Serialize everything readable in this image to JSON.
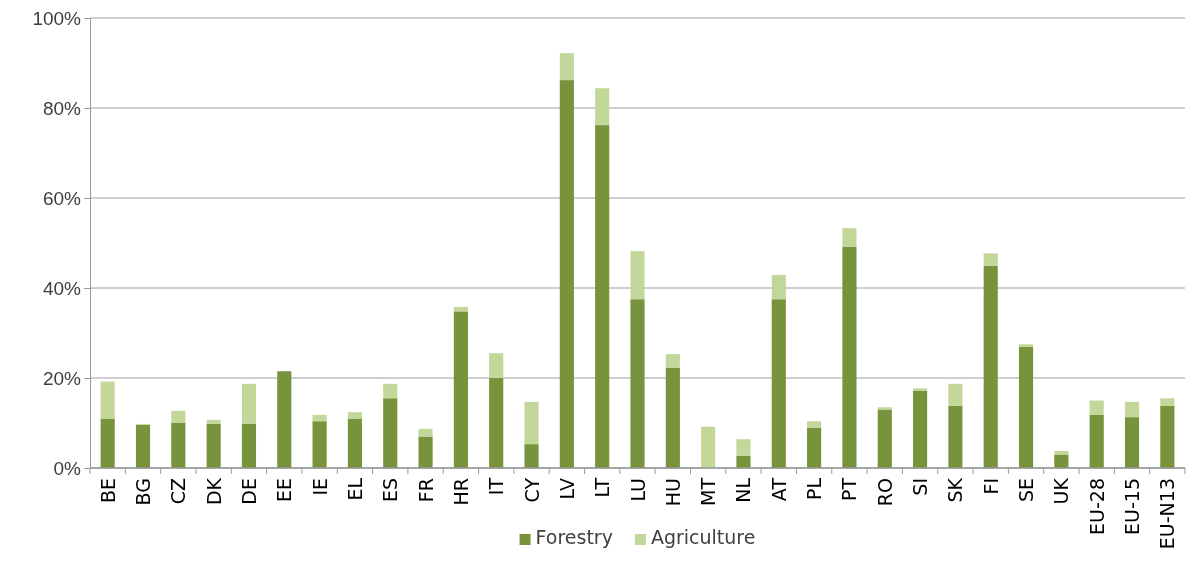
{
  "chart_data": {
    "type": "bar",
    "stacked": true,
    "categories": [
      "BE",
      "BG",
      "CZ",
      "DK",
      "DE",
      "EE",
      "IE",
      "EL",
      "ES",
      "FR",
      "HR",
      "IT",
      "CY",
      "LV",
      "LT",
      "LU",
      "HU",
      "MT",
      "NL",
      "AT",
      "PL",
      "PT",
      "RO",
      "SI",
      "SK",
      "FI",
      "SE",
      "UK",
      "EU-28",
      "EU-15",
      "EU-N13"
    ],
    "series": [
      {
        "name": "Forestry",
        "color": "#77933c",
        "values": [
          11,
          9.6,
          10.1,
          9.8,
          9.8,
          21.5,
          10.4,
          11,
          15.5,
          7,
          34.8,
          20,
          5.3,
          86.2,
          76.2,
          37.5,
          22.3,
          0,
          2.7,
          37.5,
          9,
          49.2,
          13,
          17.2,
          13.8,
          44.9,
          26.9,
          3,
          11.8,
          11.3,
          13.8
        ]
      },
      {
        "name": "Agriculture",
        "color": "#c4d79b",
        "values": [
          8.2,
          0.2,
          2.6,
          0.9,
          8.9,
          0,
          1.4,
          1.4,
          3.2,
          1.7,
          1,
          5.5,
          9.4,
          6,
          8.2,
          10.7,
          3,
          9.2,
          3.7,
          5.4,
          1.4,
          4.1,
          0.5,
          0.5,
          4.9,
          2.8,
          0.6,
          0.8,
          3.2,
          3.4,
          1.7
        ]
      }
    ],
    "ylim": [
      0,
      100
    ],
    "yticks": [
      {
        "value": 0,
        "label": "0%"
      },
      {
        "value": 20,
        "label": "20%"
      },
      {
        "value": 40,
        "label": "40%"
      },
      {
        "value": 60,
        "label": "60%"
      },
      {
        "value": 80,
        "label": "80%"
      },
      {
        "value": 100,
        "label": "100%"
      }
    ],
    "grid": "y",
    "legend": "bottom"
  }
}
